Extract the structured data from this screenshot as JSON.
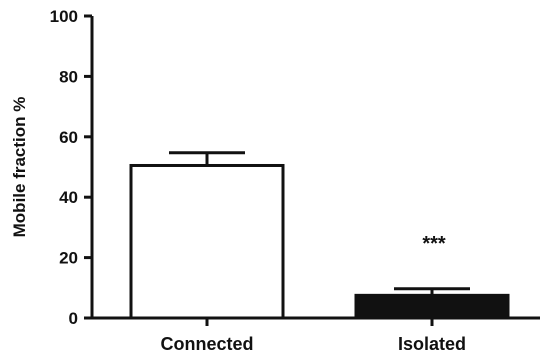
{
  "chart_data": {
    "type": "bar",
    "title": "",
    "xlabel": "",
    "ylabel": "Mobile fraction %",
    "ylim": [
      0,
      100
    ],
    "yticks": [
      "0",
      "20",
      "40",
      "60",
      "80",
      "100"
    ],
    "categories": [
      "Connected",
      "Isolated"
    ],
    "values": [
      50.5,
      7.5
    ],
    "error_plus": [
      4.2,
      2.2
    ],
    "bar_fill": [
      "#ffffff",
      "#111111"
    ],
    "bar_stroke": "#111111",
    "annotations": [
      {
        "category": "Isolated",
        "text": "***"
      }
    ],
    "grid": false,
    "legend": "none"
  }
}
